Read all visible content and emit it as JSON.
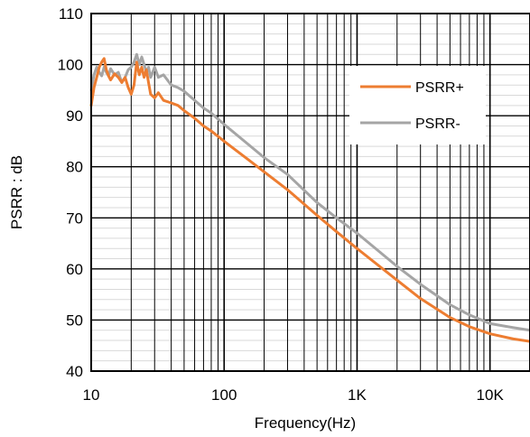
{
  "chart_data": {
    "type": "line",
    "xscale": "log",
    "xlim": [
      10,
      20000
    ],
    "ylim": [
      40,
      110
    ],
    "xlabel": "Frequency(Hz)",
    "ylabel": "PSRR  : dB",
    "x_ticks": [
      {
        "value": 10,
        "label": "10"
      },
      {
        "value": 100,
        "label": "100"
      },
      {
        "value": 1000,
        "label": "1K"
      },
      {
        "value": 10000,
        "label": "10K"
      }
    ],
    "y_ticks": [
      40,
      50,
      60,
      70,
      80,
      90,
      100,
      110
    ],
    "grid": {
      "major": true,
      "minor": true
    },
    "legend": {
      "position": "top-right"
    },
    "series": [
      {
        "name": "PSRR+",
        "color": "#ED7D31",
        "x": [
          10,
          10.5,
          11,
          11.5,
          12,
          12.5,
          13,
          13.5,
          14,
          15,
          16,
          17,
          18,
          19,
          20,
          21,
          22,
          23,
          24,
          25,
          26,
          27,
          28,
          30,
          32,
          35,
          40,
          45,
          50,
          60,
          70,
          80,
          100,
          150,
          200,
          300,
          500,
          700,
          1000,
          2000,
          3000,
          5000,
          7000,
          10000,
          15000,
          20000
        ],
        "y": [
          92,
          95.5,
          97.5,
          99.5,
          100.5,
          101.2,
          99,
          97.8,
          97,
          98.2,
          97.5,
          96.5,
          97.5,
          95.5,
          94.2,
          96,
          100.5,
          98,
          99.5,
          97.5,
          99,
          96.5,
          94.2,
          93.5,
          94.5,
          93,
          92.5,
          92,
          91,
          89.5,
          88,
          87,
          85,
          81.5,
          79,
          75.5,
          70.5,
          67.3,
          64,
          57.8,
          54.2,
          50.5,
          48.7,
          47.3,
          46.3,
          45.8
        ]
      },
      {
        "name": "PSRR-",
        "color": "#A5A5A5",
        "x": [
          10,
          10.5,
          11,
          11.5,
          12,
          12.5,
          13,
          13.5,
          14,
          15,
          16,
          17,
          18,
          19,
          20,
          21,
          22,
          23,
          24,
          25,
          26,
          27,
          28,
          30,
          32,
          35,
          40,
          45,
          50,
          60,
          70,
          80,
          100,
          150,
          200,
          300,
          500,
          700,
          1000,
          2000,
          3000,
          5000,
          7000,
          10000,
          15000,
          20000
        ],
        "y": [
          95,
          98,
          99.5,
          98.5,
          97.8,
          99.5,
          98.5,
          97.8,
          99.2,
          98,
          98.5,
          96.5,
          97.5,
          99,
          99.5,
          100.5,
          102,
          100,
          101.5,
          100,
          98.5,
          99.5,
          97.5,
          99.5,
          97.5,
          98,
          96,
          95.5,
          94.8,
          93,
          91.5,
          90.5,
          88.3,
          84.5,
          81.8,
          78.5,
          73,
          70,
          67,
          60.5,
          57,
          53,
          51,
          49.3,
          48.5,
          48
        ]
      }
    ]
  }
}
